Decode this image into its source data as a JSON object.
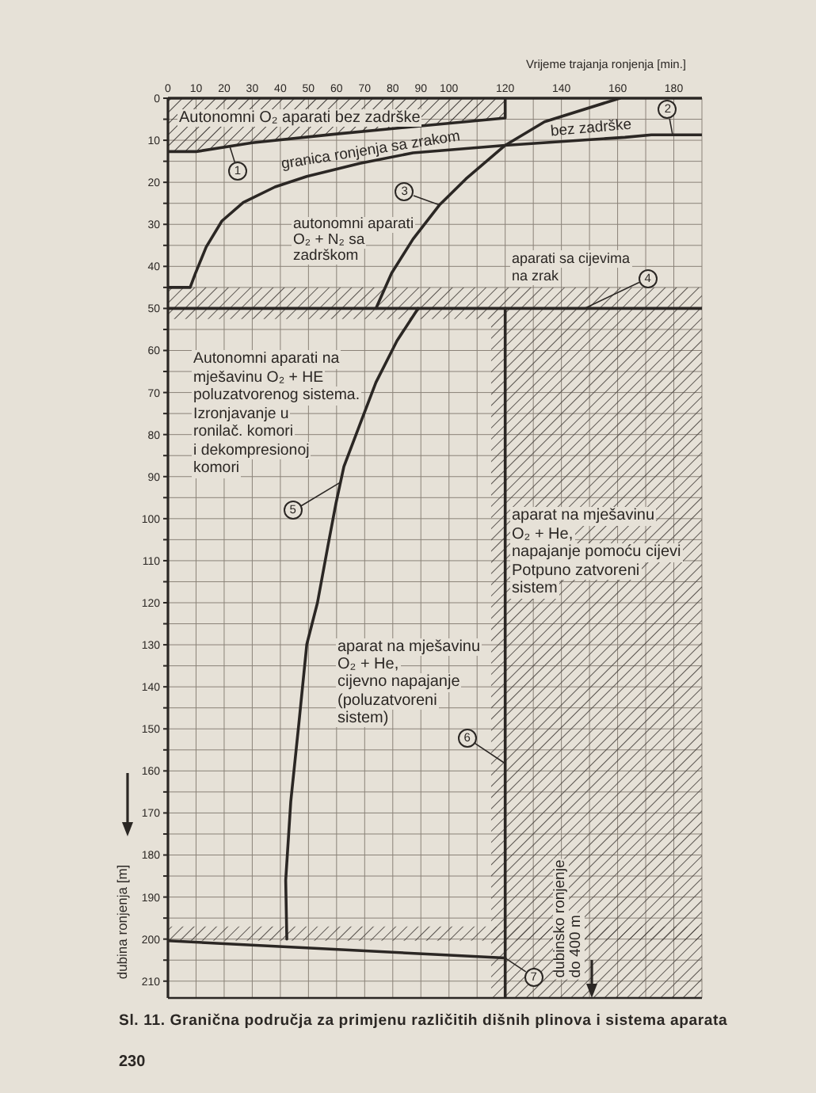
{
  "chart_data": {
    "type": "line",
    "xlabel": "Vrijeme trajanja ronjenja [min.]",
    "ylabel": "dubina ronjenja [m]",
    "xlim": [
      0,
      190
    ],
    "ylim": [
      214,
      0
    ],
    "xticks": [
      0,
      10,
      20,
      30,
      40,
      50,
      60,
      70,
      80,
      90,
      100,
      {
        "value": 110,
        "label": null
      },
      120,
      {
        "value": 130,
        "label": null
      },
      140,
      {
        "value": 150,
        "label": null
      },
      160,
      {
        "value": 170,
        "label": null
      },
      180,
      {
        "value": 190,
        "label": null
      }
    ],
    "yticks": [
      0,
      {
        "value": 5,
        "label": null
      },
      10,
      {
        "value": 15,
        "label": null
      },
      20,
      {
        "value": 25,
        "label": null
      },
      30,
      {
        "value": 35,
        "label": null
      },
      40,
      {
        "value": 45,
        "label": null
      },
      50,
      {
        "value": 55,
        "label": null
      },
      60,
      {
        "value": 65,
        "label": null
      },
      70,
      {
        "value": 75,
        "label": null
      },
      80,
      {
        "value": 85,
        "label": null
      },
      90,
      {
        "value": 95,
        "label": null
      },
      100,
      {
        "value": 105,
        "label": null
      },
      110,
      {
        "value": 115,
        "label": null
      },
      120,
      {
        "value": 125,
        "label": null
      },
      130,
      {
        "value": 135,
        "label": null
      },
      140,
      {
        "value": 145,
        "label": null
      },
      150,
      {
        "value": 155,
        "label": null
      },
      160,
      {
        "value": 165,
        "label": null
      },
      170,
      {
        "value": 175,
        "label": null
      },
      180,
      {
        "value": 185,
        "label": null
      },
      190,
      {
        "value": 195,
        "label": null
      },
      200,
      {
        "value": 205,
        "label": null
      },
      210
    ],
    "grid": true,
    "line_style": "solid",
    "series": [
      {
        "name": "1",
        "type": "area",
        "color": "#2b2724",
        "x": [
          0,
          10,
          30,
          60,
          90,
          120,
          120
        ],
        "values": [
          12.7,
          12.7,
          10.6,
          8.5,
          6.6,
          4.7,
          0
        ]
      },
      {
        "name": "2",
        "color": "#2b2724",
        "x": [
          0,
          7.9,
          9.8,
          13.6,
          19.2,
          26.8,
          38.1,
          49.4,
          68.3,
          87.2,
          120,
          162.6,
          172,
          190
        ],
        "values": [
          45,
          45,
          41.6,
          35.4,
          29.2,
          24.8,
          21.1,
          18.6,
          15.5,
          13,
          11.2,
          9.3,
          8.7,
          8.7
        ]
      },
      {
        "name": "3",
        "color": "#2b2724",
        "x": [
          74,
          79.6,
          87.2,
          96.6,
          106,
          120,
          134,
          160.8
        ],
        "values": [
          50,
          41.6,
          33.5,
          25.4,
          19.2,
          11.2,
          5.6,
          0
        ]
      },
      {
        "name": "4",
        "color": "#2b2724",
        "x": [
          0,
          190
        ],
        "values": [
          50,
          50
        ]
      },
      {
        "name": "5",
        "color": "#2b2724",
        "x": [
          89,
          81.5,
          74,
          68.3,
          62.6,
          59.8,
          57,
          53.2,
          49.4,
          46.6,
          43.7,
          41.9,
          42.3
        ],
        "values": [
          50,
          57.7,
          67.6,
          77.6,
          87.6,
          96.3,
          106.2,
          120,
          129.9,
          148.6,
          167.3,
          186,
          200
        ]
      },
      {
        "name": "6",
        "color": "#2b2724",
        "x": [
          120,
          120
        ],
        "values": [
          50,
          214
        ]
      },
      {
        "name": "7",
        "color": "#2b2724",
        "x": [
          0,
          120
        ],
        "values": [
          200.4,
          204.5
        ]
      },
      {
        "type": "area",
        "color": "#4a4540",
        "x": [
          115,
          190
        ],
        "values": [
          null,
          null
        ],
        "lower": [
          52.5,
          52.5
        ],
        "upper": [
          214,
          214
        ]
      }
    ],
    "bands": [
      {
        "axis": "y",
        "from": 45,
        "to": 52.5,
        "color": "#4a4540"
      },
      {
        "axis": "y",
        "from": 197,
        "to": 200.4,
        "color": "#4a4540"
      }
    ],
    "annotations": [
      "Autonomni O₂ aparati bez zadrške",
      "granica ronjenja sa zrakom",
      "bez zadrške",
      "autonomni aparati\nO₂ + N₂ sa\nzadrškom",
      "aparati sa cijevima\nna zrak",
      "Autonomni aparati na\nmješavinu O₂ + HE\npoluzatvorenog sistema.\nIzronjavanje u\nronilač. komori\ni dekompresionoj\nkomori",
      "aparat na mješavinu\nO₂ + He,\nnapajanje pomoću cijevi\nPotpuno zatvoreni\nsistem",
      "aparat na mješavinu\nO₂ + He,\ncijevno napajanje\n(poluzatvoreni\nsistem)",
      "dubinsko ronjenje\ndo 400 m",
      "Sl. 11. Granična područja za primjenu različitih dišnih plinova i sistema aparata",
      "230"
    ]
  }
}
